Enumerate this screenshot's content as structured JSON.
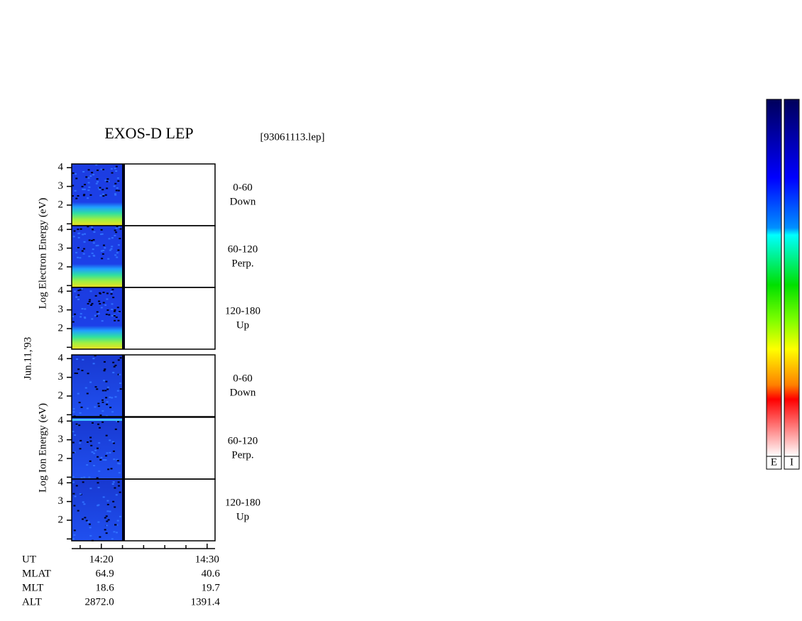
{
  "title": "EXOS-D LEP",
  "file": "[93061113.lep]",
  "date": "Jun.11,'93",
  "electron_label": "Log  Electron  Energy (eV)",
  "ion_label": "Log  Ion  Energy (eV)",
  "panels": [
    {
      "angle": "0-60",
      "direction": "Down"
    },
    {
      "angle": "60-120",
      "direction": "Perp."
    },
    {
      "angle": "120-180",
      "direction": "Up"
    },
    {
      "angle": "0-60",
      "direction": "Down"
    },
    {
      "angle": "60-120",
      "direction": "Perp."
    },
    {
      "angle": "120-180",
      "direction": "Up"
    }
  ],
  "ylim": [
    0.9,
    4.2
  ],
  "yticks": [
    2,
    3,
    4
  ],
  "yticks_minor": [
    1
  ],
  "xlim": [
    857.2,
    870.75
  ],
  "xticks": [
    {
      "value": 860,
      "label": "14:20"
    },
    {
      "value": 870,
      "label": "14:30"
    }
  ],
  "xticks_minor": [
    858,
    862,
    864,
    866,
    868
  ],
  "orbit": {
    "ut_label": "UT",
    "labels": [
      "MLAT",
      "MLT",
      "ALT"
    ],
    "start": [
      "64.9",
      "18.6",
      "2872.0"
    ],
    "end": [
      "40.6",
      "19.7",
      "1391.4"
    ]
  },
  "colorbars": [
    "E",
    "I"
  ]
}
